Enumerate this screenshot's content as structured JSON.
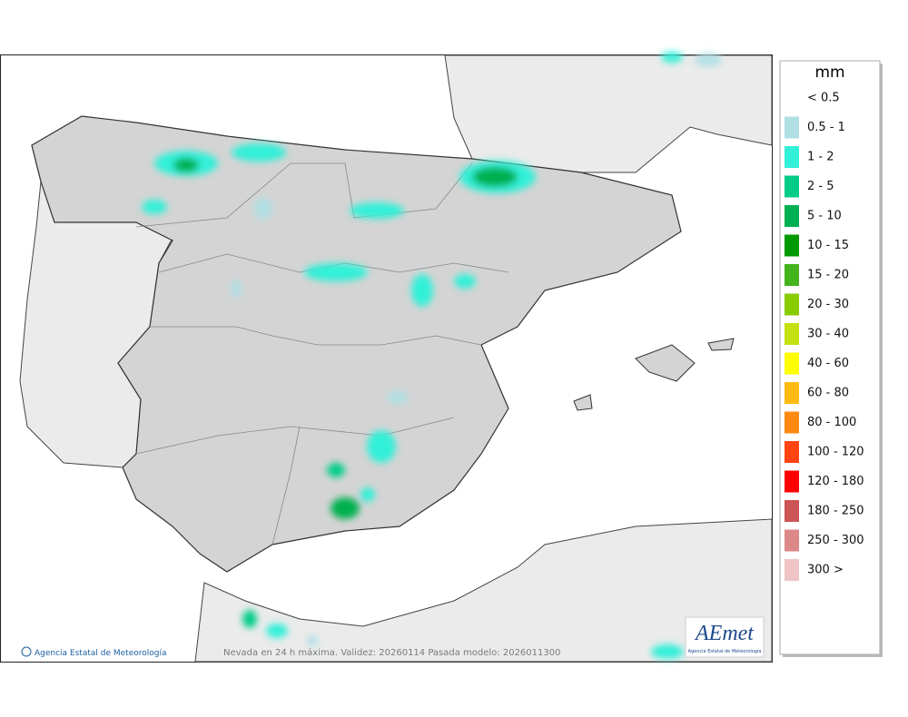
{
  "map": {
    "title": "Nevada en 24 h máxima. Validez: 20260114 Pasada modelo: 2026011300",
    "credit": "Agencia Estatal de Meteorología",
    "logo": {
      "text": "AEmet",
      "subtitle": "Agencia Estatal de Meteorología"
    }
  },
  "legend": {
    "unit": "mm",
    "items": [
      {
        "label": "< 0.5"
      },
      {
        "label": "0.5 - 1",
        "color": "#b0dfe3"
      },
      {
        "label": "1 - 2",
        "color": "#33f0d8"
      },
      {
        "label": "2 - 5",
        "color": "#00cc88"
      },
      {
        "label": "5 - 10",
        "color": "#00b050"
      },
      {
        "label": "10 - 15",
        "color": "#009900"
      },
      {
        "label": "15 - 20",
        "color": "#44b41c"
      },
      {
        "label": "20 - 30",
        "color": "#88cc00"
      },
      {
        "label": "30 - 40",
        "color": "#c4e010"
      },
      {
        "label": "40 - 60",
        "color": "#ffff00"
      },
      {
        "label": "60 - 80",
        "color": "#ffbb11"
      },
      {
        "label": "80 - 100",
        "color": "#ff8811"
      },
      {
        "label": "100 - 120",
        "color": "#ff4411"
      },
      {
        "label": "120 - 180",
        "color": "#ff0000"
      },
      {
        "label": "180 - 250",
        "color": "#cc5555"
      },
      {
        "label": "250 - 300",
        "color": "#dd8888"
      },
      {
        "label": "300 >",
        "color": "#eec4c4"
      }
    ]
  }
}
